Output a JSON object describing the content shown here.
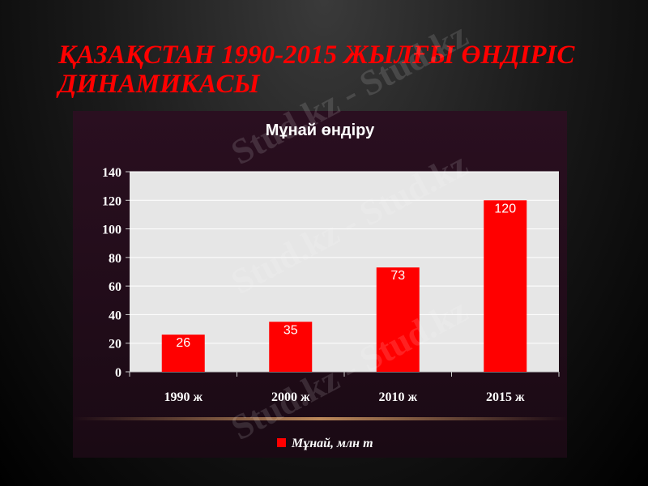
{
  "slide_title": "ҚАЗАҚСТАН 1990-2015 ЖЫЛҒЫ ӨНДІРІС ДИНАМИКАСЫ",
  "watermark": "Stud.kz - Stud.kz",
  "colors": {
    "title": "#ff0000",
    "bar": "#ff0000",
    "plot_bg": "#e6e6e6"
  },
  "chart_data": {
    "type": "bar",
    "title": "Мұнай өндіру",
    "categories": [
      "1990 ж",
      "2000 ж",
      "2010 ж",
      "2015 ж"
    ],
    "series": [
      {
        "name": "Мұнай, млн т",
        "values": [
          26,
          35,
          73,
          120
        ]
      }
    ],
    "ylim": [
      0,
      140
    ],
    "yticks": [
      0,
      20,
      40,
      60,
      80,
      100,
      120,
      140
    ],
    "data_labels": true,
    "grid": true,
    "legend": "bottom"
  }
}
